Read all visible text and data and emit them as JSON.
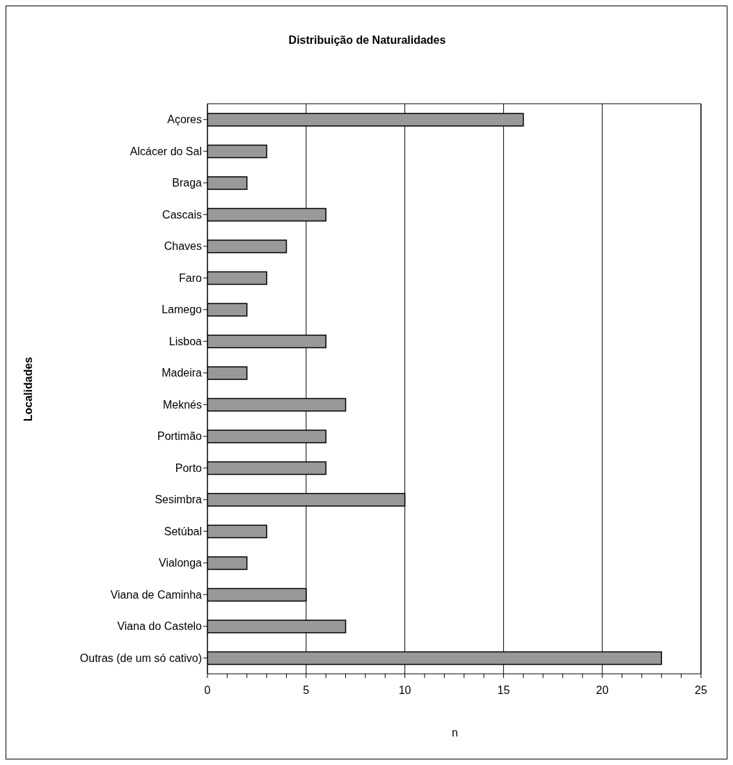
{
  "chart_data": {
    "type": "bar",
    "orientation": "horizontal",
    "title": "Distribuição de Naturalidades",
    "xlabel": "n",
    "ylabel": "Localidades",
    "categories": [
      "Açores",
      "Alcácer do Sal",
      "Braga",
      "Cascais",
      "Chaves",
      "Faro",
      "Lamego",
      "Lisboa",
      "Madeira",
      "Meknés",
      "Portimão",
      "Porto",
      "Sesimbra",
      "Setúbal",
      "Vialonga",
      "Viana de Caminha",
      "Viana do Castelo",
      "Outras (de um só cativo)"
    ],
    "values": [
      16,
      3,
      2,
      6,
      4,
      3,
      2,
      6,
      2,
      7,
      6,
      6,
      10,
      3,
      2,
      5,
      7,
      23
    ],
    "color": "#999999",
    "xlim": [
      0,
      25
    ],
    "xticks": [
      0,
      {
        "value": 1,
        "label": null
      },
      {
        "value": 2,
        "label": null
      },
      {
        "value": 3,
        "label": null
      },
      {
        "value": 4,
        "label": null
      },
      5,
      {
        "value": 6,
        "label": null
      },
      {
        "value": 7,
        "label": null
      },
      {
        "value": 8,
        "label": null
      },
      {
        "value": 9,
        "label": null
      },
      10,
      {
        "value": 11,
        "label": null
      },
      {
        "value": 12,
        "label": null
      },
      {
        "value": 13,
        "label": null
      },
      {
        "value": 14,
        "label": null
      },
      15,
      {
        "value": 16,
        "label": null
      },
      {
        "value": 17,
        "label": null
      },
      {
        "value": 18,
        "label": null
      },
      {
        "value": 19,
        "label": null
      },
      20,
      {
        "value": 21,
        "label": null
      },
      {
        "value": 22,
        "label": null
      },
      {
        "value": 23,
        "label": null
      },
      {
        "value": 24,
        "label": null
      },
      25
    ],
    "grid": "x",
    "legend": false
  }
}
